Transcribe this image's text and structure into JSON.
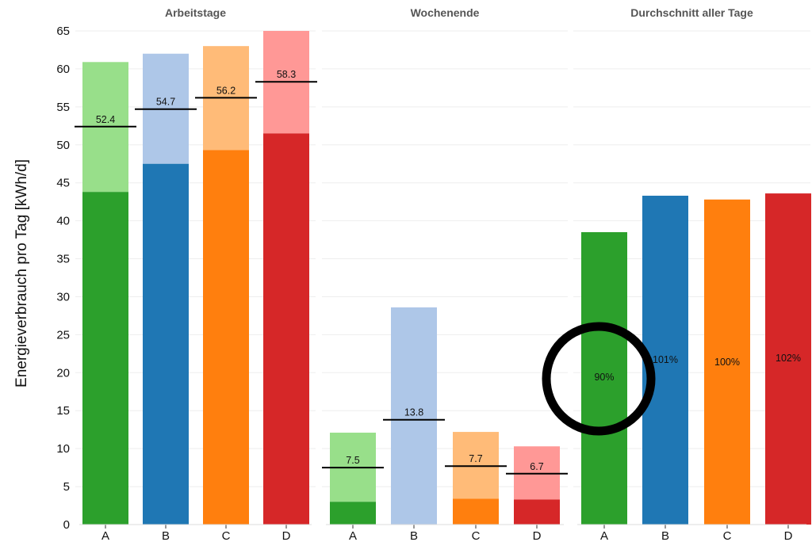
{
  "chart_data": {
    "type": "bar",
    "ylabel": "Energieverbrauch pro Tag [kWh/d]",
    "ylim": [
      0,
      65
    ],
    "yticks": [
      0,
      5,
      10,
      15,
      20,
      25,
      30,
      35,
      40,
      45,
      50,
      55,
      60,
      65
    ],
    "grid": true,
    "categories": [
      "A",
      "B",
      "C",
      "D"
    ],
    "colors": {
      "dark": [
        "#2ca02c",
        "#1f77b4",
        "#ff7f0e",
        "#d62728"
      ],
      "light": [
        "#98df8a",
        "#aec7e8",
        "#ffbb78",
        "#ff9896"
      ]
    },
    "panels": [
      {
        "title": "Arbeitstage",
        "stacked": true,
        "lower_values": [
          43.8,
          47.5,
          49.3,
          51.5
        ],
        "total_values": [
          60.9,
          62.0,
          63.0,
          65.0
        ],
        "mean_lines": [
          52.4,
          54.7,
          56.2,
          58.3
        ],
        "mean_labels": [
          "52.4",
          "54.7",
          "56.2",
          "58.3"
        ]
      },
      {
        "title": "Wochenende",
        "stacked": true,
        "lower_values": [
          3.0,
          0.0,
          3.4,
          3.3
        ],
        "total_values": [
          12.1,
          28.6,
          12.2,
          10.3
        ],
        "mean_lines": [
          7.5,
          13.8,
          7.7,
          6.7
        ],
        "mean_labels": [
          "7.5",
          "13.8",
          "7.7",
          "6.7"
        ]
      },
      {
        "title": "Durchschnitt aller Tage",
        "stacked": false,
        "values": [
          38.5,
          43.3,
          42.8,
          43.6
        ],
        "bar_labels": [
          "90%",
          "101%",
          "100%",
          "102%"
        ]
      }
    ],
    "annotations": [
      {
        "type": "circle",
        "panel": 2,
        "category": "A",
        "y_center": 19.2
      }
    ]
  }
}
